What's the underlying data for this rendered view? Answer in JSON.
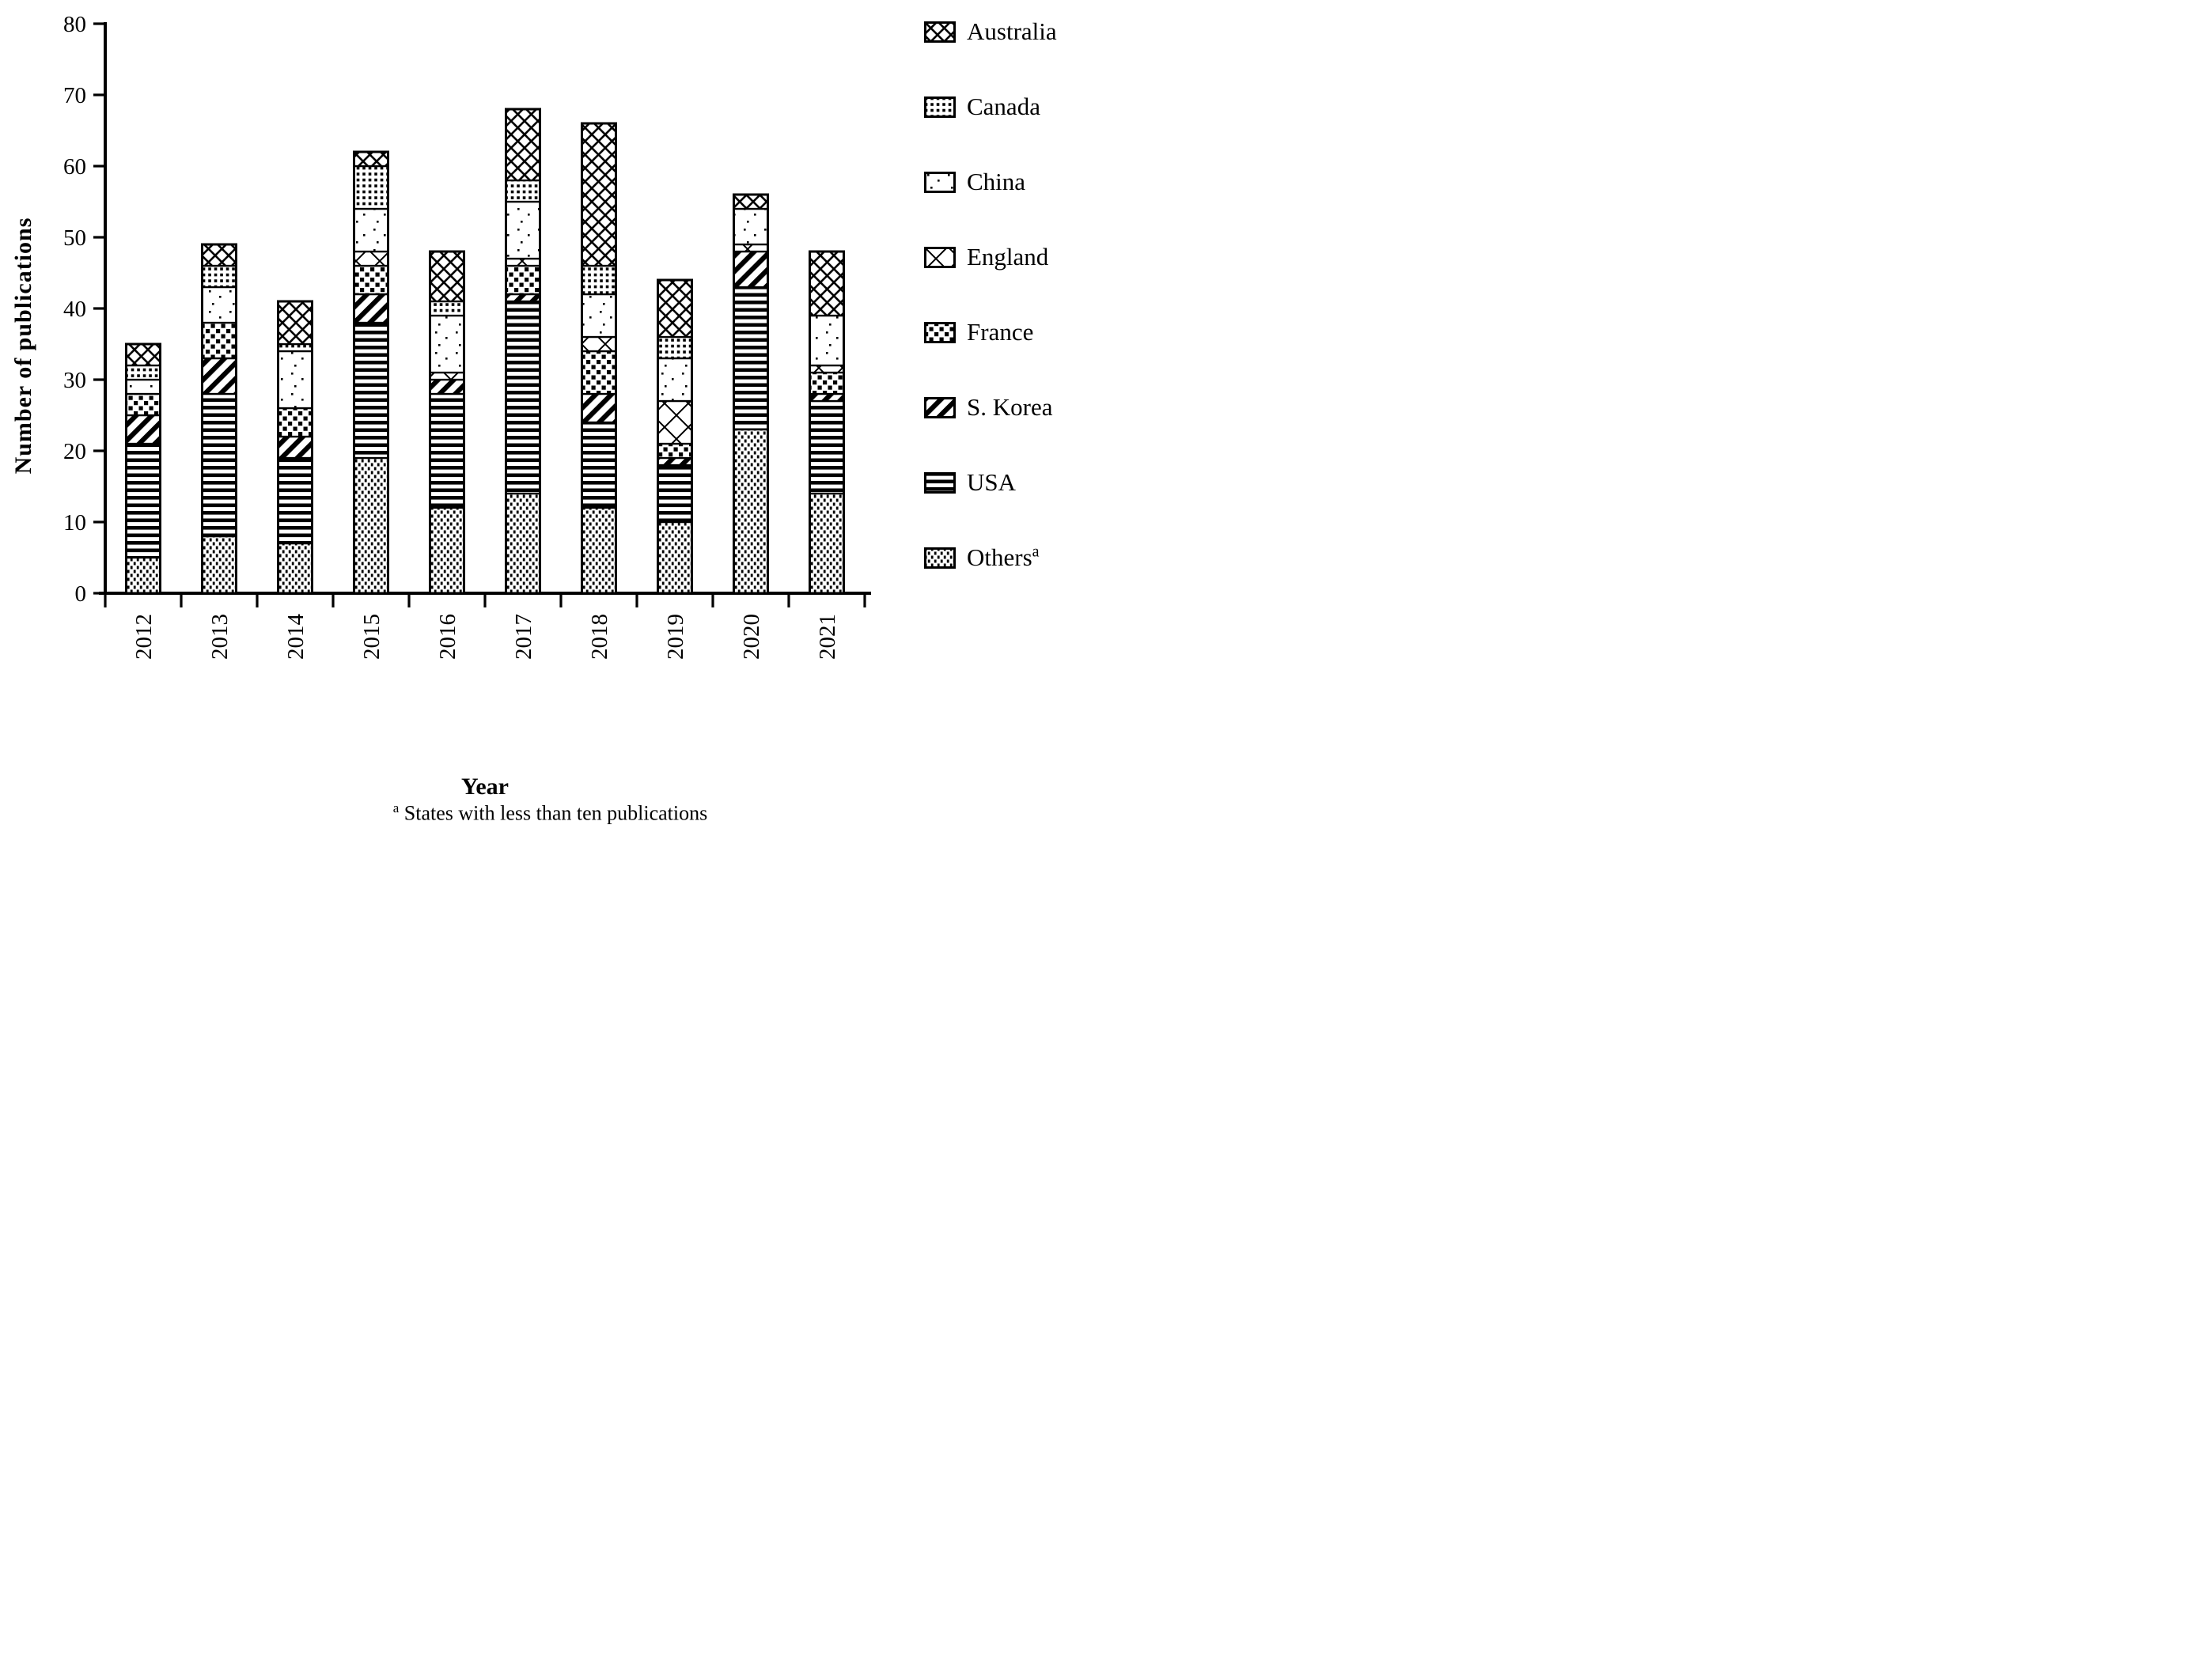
{
  "chart_data": {
    "type": "bar",
    "subtype": "stacked-vertical",
    "title": "",
    "xlabel": "Year",
    "ylabel": "Number of publications",
    "ylim": [
      0,
      80
    ],
    "ytick_step": 10,
    "y_ticks": [
      0,
      10,
      20,
      30,
      40,
      50,
      60,
      70,
      80
    ],
    "grid": false,
    "legend_position": "right",
    "bar_fill_style": "black-and-white-patterns",
    "categories": [
      "2012",
      "2013",
      "2014",
      "2015",
      "2016",
      "2017",
      "2018",
      "2019",
      "2020",
      "2021"
    ],
    "series": [
      {
        "name": "Australia",
        "pattern": "australia",
        "values": [
          3,
          3,
          6,
          2,
          7,
          10,
          20,
          8,
          2,
          9
        ]
      },
      {
        "name": "Canada",
        "pattern": "canada",
        "values": [
          2,
          3,
          1,
          6,
          2,
          3,
          4,
          3,
          0,
          0
        ]
      },
      {
        "name": "China",
        "pattern": "china",
        "values": [
          2,
          5,
          8,
          6,
          8,
          8,
          6,
          6,
          5,
          7
        ]
      },
      {
        "name": "England",
        "pattern": "england",
        "values": [
          0,
          0,
          0,
          2,
          1,
          1,
          2,
          6,
          1,
          1
        ]
      },
      {
        "name": "France",
        "pattern": "france",
        "values": [
          3,
          5,
          4,
          4,
          0,
          4,
          6,
          2,
          0,
          3
        ]
      },
      {
        "name": "S. Korea",
        "pattern": "skorea",
        "values": [
          4,
          5,
          3,
          4,
          2,
          1,
          4,
          1,
          5,
          1
        ]
      },
      {
        "name": "USA",
        "pattern": "usa",
        "values": [
          16,
          20,
          12,
          19,
          16,
          27,
          12,
          8,
          20,
          13
        ]
      },
      {
        "name": "Others",
        "pattern": "others",
        "superscript": "a",
        "values": [
          5,
          8,
          7,
          19,
          12,
          14,
          12,
          10,
          23,
          14
        ]
      }
    ],
    "stack_order_bottom_to_top": [
      "Others",
      "USA",
      "S. Korea",
      "France",
      "England",
      "China",
      "Canada",
      "Australia"
    ],
    "totals": [
      35,
      49,
      41,
      62,
      48,
      68,
      66,
      44,
      56,
      48
    ],
    "colors": {
      "foreground": "#000000",
      "background": "#ffffff"
    }
  },
  "footnote": {
    "marker": "a",
    "text": "States with less than ten publications"
  }
}
